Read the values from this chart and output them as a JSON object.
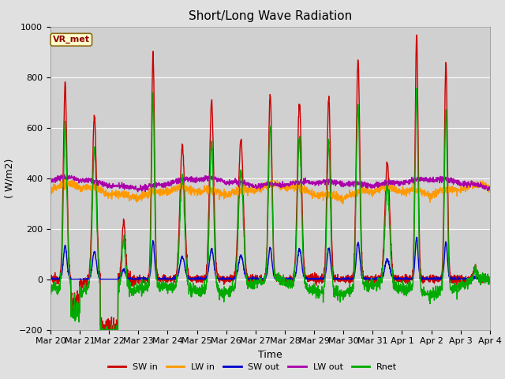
{
  "title": "Short/Long Wave Radiation",
  "ylabel": "( W/m2)",
  "xlabel": "Time",
  "ylim": [
    -200,
    1000
  ],
  "xlim_days": 15,
  "station_label": "VR_met",
  "background_color": "#e0e0e0",
  "plot_bg_color": "#d0d0d0",
  "grid_color": "white",
  "series": {
    "SW_in": {
      "color": "#cc0000",
      "lw": 1.0
    },
    "LW_in": {
      "color": "#ff9900",
      "lw": 1.0
    },
    "SW_out": {
      "color": "#0000cc",
      "lw": 1.0
    },
    "LW_out": {
      "color": "#aa00aa",
      "lw": 1.0
    },
    "Rnet": {
      "color": "#00aa00",
      "lw": 1.0
    }
  },
  "legend_labels": [
    "SW in",
    "LW in",
    "SW out",
    "LW out",
    "Rnet"
  ],
  "legend_colors": [
    "#cc0000",
    "#ff9900",
    "#0000cc",
    "#aa00aa",
    "#00aa00"
  ],
  "x_tick_labels": [
    "Mar 20",
    "Mar 21",
    "Mar 22",
    "Mar 23",
    "Mar 24",
    "Mar 25",
    "Mar 26",
    "Mar 27",
    "Mar 28",
    "Mar 29",
    "Mar 30",
    "Mar 31",
    "Apr 1",
    "Apr 2",
    "Apr 3",
    "Apr 4"
  ],
  "title_fontsize": 11,
  "tick_fontsize": 8,
  "label_fontsize": 9,
  "day_peaks_SW": [
    775,
    640,
    230,
    900,
    530,
    705,
    560,
    730,
    700,
    720,
    870,
    460,
    960,
    860,
    50
  ],
  "day_widths_SW": [
    0.06,
    0.07,
    0.06,
    0.05,
    0.08,
    0.07,
    0.08,
    0.06,
    0.07,
    0.06,
    0.06,
    0.08,
    0.05,
    0.05,
    0.06
  ],
  "LW_base": 340,
  "LW_out_base": 375
}
